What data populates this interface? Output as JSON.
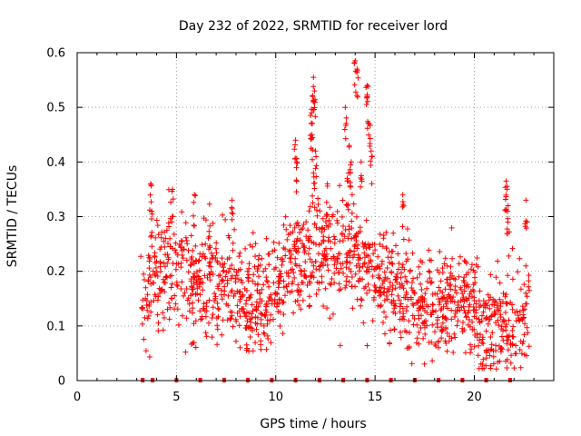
{
  "chart_data": {
    "type": "scatter",
    "title": "Day 232 of 2022, SRMTID for receiver lord",
    "xlabel": "GPS time / hours",
    "ylabel": "SRMTID / TECUs",
    "xlim": [
      0,
      24
    ],
    "ylim": [
      0,
      0.6
    ],
    "x_ticks": [
      0,
      5,
      10,
      15,
      20
    ],
    "y_ticks": [
      0,
      0.1,
      0.2,
      0.3,
      0.4,
      0.5,
      0.6
    ],
    "x_tick_labels": [
      "0",
      "5",
      "10",
      "15",
      "20"
    ],
    "y_tick_labels": [
      "0",
      "0.1",
      "0.2",
      "0.3",
      "0.4",
      "0.5",
      "0.6"
    ],
    "grid": true,
    "marker": "plus",
    "color": "#ff0000",
    "baseline_markers_x": [
      3.3,
      3.8,
      5.0,
      6.2,
      7.4,
      8.6,
      9.8,
      11.0,
      12.2,
      13.4,
      14.6,
      15.8,
      17.0,
      18.2,
      19.4,
      20.6,
      21.8
    ],
    "trend_profile": {
      "x": [
        3.2,
        3.5,
        4.0,
        4.5,
        5.0,
        5.5,
        6.0,
        6.5,
        7.0,
        7.5,
        8.0,
        8.5,
        9.0,
        9.5,
        10.0,
        10.5,
        11.0,
        11.5,
        12.0,
        12.5,
        13.0,
        13.5,
        14.0,
        14.5,
        15.0,
        15.5,
        16.0,
        16.5,
        17.0,
        17.5,
        18.0,
        18.5,
        19.0,
        19.5,
        20.0,
        20.5,
        21.0,
        21.5,
        22.0,
        22.5,
        22.8
      ],
      "y": [
        0.12,
        0.16,
        0.19,
        0.21,
        0.2,
        0.18,
        0.19,
        0.18,
        0.17,
        0.18,
        0.15,
        0.14,
        0.13,
        0.14,
        0.17,
        0.21,
        0.23,
        0.22,
        0.24,
        0.22,
        0.23,
        0.22,
        0.24,
        0.2,
        0.19,
        0.18,
        0.17,
        0.16,
        0.15,
        0.13,
        0.12,
        0.14,
        0.15,
        0.14,
        0.13,
        0.09,
        0.08,
        0.1,
        0.09,
        0.13,
        0.15
      ]
    },
    "spread": 0.055,
    "point_count": 1500,
    "peaks": [
      {
        "x": 3.7,
        "y": 0.36
      },
      {
        "x": 3.75,
        "y": 0.31
      },
      {
        "x": 4.8,
        "y": 0.35
      },
      {
        "x": 5.9,
        "y": 0.34
      },
      {
        "x": 7.8,
        "y": 0.33
      },
      {
        "x": 11.0,
        "y": 0.44
      },
      {
        "x": 11.05,
        "y": 0.4
      },
      {
        "x": 11.8,
        "y": 0.49
      },
      {
        "x": 11.85,
        "y": 0.52
      },
      {
        "x": 11.9,
        "y": 0.555
      },
      {
        "x": 11.95,
        "y": 0.53
      },
      {
        "x": 11.82,
        "y": 0.45
      },
      {
        "x": 11.9,
        "y": 0.38
      },
      {
        "x": 12.0,
        "y": 0.42
      },
      {
        "x": 12.6,
        "y": 0.36
      },
      {
        "x": 13.5,
        "y": 0.5
      },
      {
        "x": 13.7,
        "y": 0.43
      },
      {
        "x": 13.8,
        "y": 0.4
      },
      {
        "x": 13.6,
        "y": 0.37
      },
      {
        "x": 14.0,
        "y": 0.585
      },
      {
        "x": 14.1,
        "y": 0.57
      },
      {
        "x": 14.3,
        "y": 0.4
      },
      {
        "x": 14.6,
        "y": 0.54
      },
      {
        "x": 14.6,
        "y": 0.52
      },
      {
        "x": 14.7,
        "y": 0.47
      },
      {
        "x": 14.8,
        "y": 0.42
      },
      {
        "x": 16.4,
        "y": 0.34
      },
      {
        "x": 21.6,
        "y": 0.365
      },
      {
        "x": 21.65,
        "y": 0.35
      },
      {
        "x": 21.7,
        "y": 0.32
      },
      {
        "x": 22.6,
        "y": 0.33
      }
    ]
  }
}
